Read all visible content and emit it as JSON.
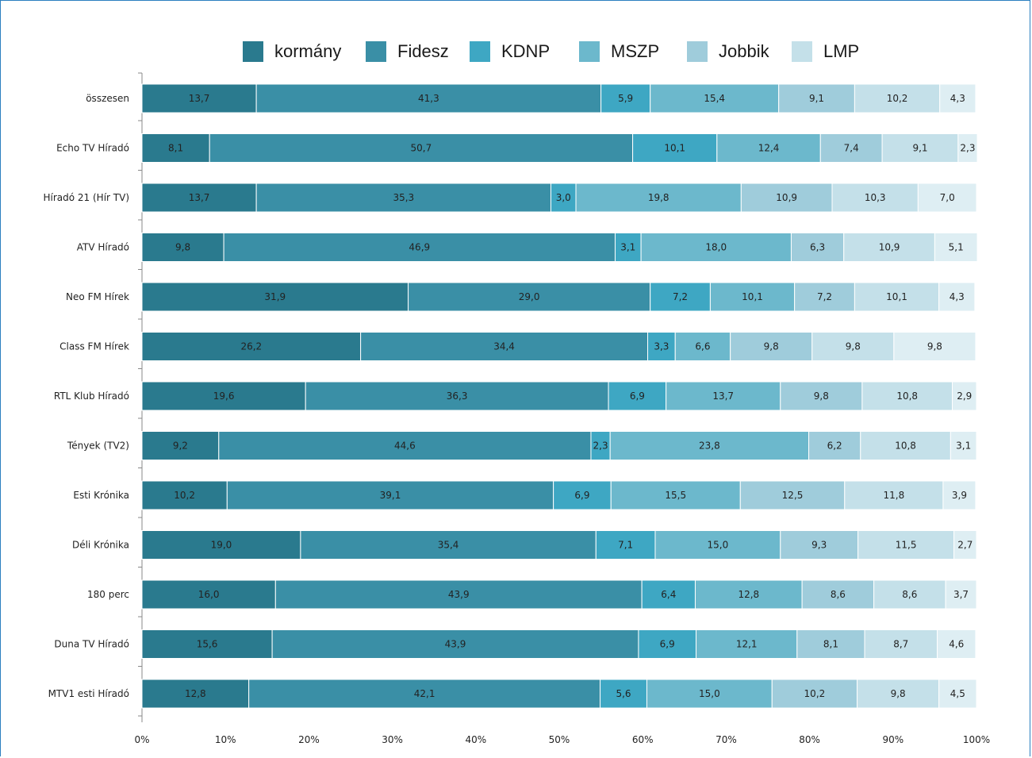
{
  "chart_data": {
    "type": "bar",
    "orientation": "horizontal",
    "stacked": "percent",
    "categories": [
      "összesen",
      "Echo TV Híradó",
      "Híradó 21 (Hír TV)",
      "ATV Híradó",
      "Neo FM Hírek",
      "Class FM Hírek",
      "RTL Klub Híradó",
      "Tények (TV2)",
      "Esti Krónika",
      "Déli Krónika",
      "180 perc",
      "Duna TV Híradó",
      "MTV1 esti Híradó"
    ],
    "series": [
      {
        "name": "kormány",
        "color": "#2a7a8e",
        "values": [
          13.7,
          8.1,
          13.7,
          9.8,
          31.9,
          26.2,
          19.6,
          9.2,
          10.2,
          19.0,
          16.0,
          15.6,
          12.8
        ]
      },
      {
        "name": "Fidesz",
        "color": "#3a8fa6",
        "values": [
          41.3,
          50.7,
          35.3,
          46.9,
          29.0,
          34.4,
          36.3,
          44.6,
          39.1,
          35.4,
          43.9,
          43.9,
          42.1
        ]
      },
      {
        "name": "KDNP",
        "color": "#3ea7c3",
        "values": [
          5.9,
          10.1,
          3.0,
          3.1,
          7.2,
          3.3,
          6.9,
          2.3,
          6.9,
          7.1,
          6.4,
          6.9,
          5.6
        ]
      },
      {
        "name": "MSZP",
        "color": "#6cb8cc",
        "values": [
          15.4,
          12.4,
          19.8,
          18.0,
          10.1,
          6.6,
          13.7,
          23.8,
          15.5,
          15.0,
          12.8,
          12.1,
          15.0
        ]
      },
      {
        "name": "Jobbik",
        "color": "#9fccdb",
        "values": [
          9.1,
          7.4,
          10.9,
          6.3,
          7.2,
          9.8,
          9.8,
          6.2,
          12.5,
          9.3,
          8.6,
          8.1,
          10.2
        ]
      },
      {
        "name": "LMP",
        "color": "#c4e0e9",
        "values": [
          10.2,
          9.1,
          10.3,
          10.9,
          10.1,
          9.8,
          10.8,
          10.8,
          11.8,
          11.5,
          8.6,
          8.7,
          9.8
        ]
      },
      {
        "name": "",
        "color": "#deeef3",
        "values": [
          4.3,
          2.3,
          7.0,
          5.1,
          4.3,
          9.8,
          2.9,
          3.1,
          3.9,
          2.7,
          3.7,
          4.6,
          4.5
        ]
      }
    ],
    "value_labels": [
      [
        "13,7",
        "41,3",
        "5,9",
        "15,4",
        "9,1",
        "10,2",
        "4,3"
      ],
      [
        "8,1",
        "50,7",
        "10,1",
        "12,4",
        "7,4",
        "9,1",
        "2,3"
      ],
      [
        "13,7",
        "35,3",
        "3,0",
        "19,8",
        "10,9",
        "10,3",
        "7,0"
      ],
      [
        "9,8",
        "46,9",
        "3,1",
        "18,0",
        "6,3",
        "10,9",
        "5,1"
      ],
      [
        "31,9",
        "29,0",
        "7,2",
        "10,1",
        "7,2",
        "10,1",
        "4,3"
      ],
      [
        "26,2",
        "34,4",
        "3,3",
        "6,6",
        "9,8",
        "9,8",
        "9,8"
      ],
      [
        "19,6",
        "36,3",
        "6,9",
        "13,7",
        "9,8",
        "10,8",
        "2,9"
      ],
      [
        "9,2",
        "44,6",
        "2,3",
        "23,8",
        "6,2",
        "10,8",
        "3,1"
      ],
      [
        "10,2",
        "39,1",
        "6,9",
        "15,5",
        "12,5",
        "11,8",
        "3,9"
      ],
      [
        "19,0",
        "35,4",
        "7,1",
        "15,0",
        "9,3",
        "11,5",
        "2,7"
      ],
      [
        "16,0",
        "43,9",
        "6,4",
        "12,8",
        "8,6",
        "8,6",
        "3,7"
      ],
      [
        "15,6",
        "43,9",
        "6,9",
        "12,1",
        "8,1",
        "8,7",
        "4,6"
      ],
      [
        "12,8",
        "42,1",
        "5,6",
        "15,0",
        "10,2",
        "9,8",
        "4,5"
      ]
    ],
    "x_ticks": [
      "0%",
      "10%",
      "20%",
      "30%",
      "40%",
      "50%",
      "60%",
      "70%",
      "80%",
      "90%",
      "100%"
    ],
    "xlim": [
      0,
      100
    ],
    "legend": {
      "position": "top"
    },
    "grid": false
  }
}
